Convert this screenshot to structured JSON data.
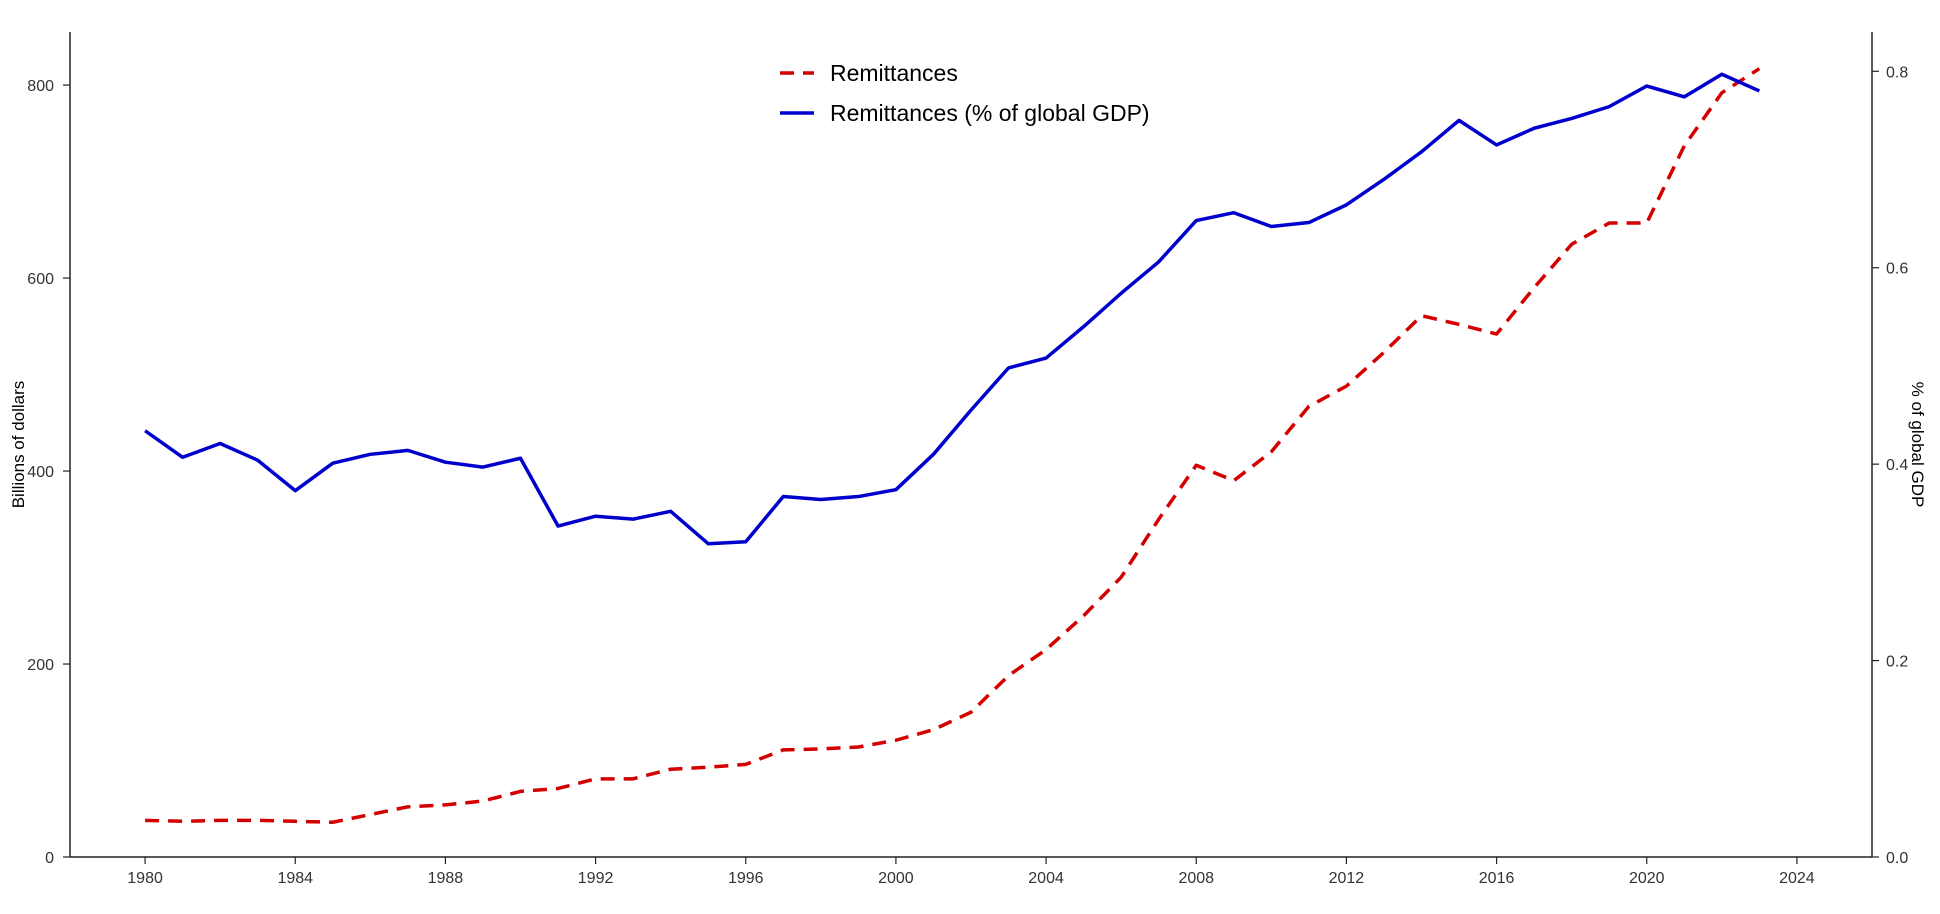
{
  "chart_data": {
    "type": "line",
    "title": "",
    "x": [
      1980,
      1981,
      1982,
      1983,
      1984,
      1985,
      1986,
      1987,
      1988,
      1989,
      1990,
      1991,
      1992,
      1993,
      1994,
      1995,
      1996,
      1997,
      1998,
      1999,
      2000,
      2001,
      2002,
      2003,
      2004,
      2005,
      2006,
      2007,
      2008,
      2009,
      2010,
      2011,
      2012,
      2013,
      2014,
      2015,
      2016,
      2017,
      2018,
      2019,
      2020,
      2021,
      2022,
      2023
    ],
    "xlim": [
      1978,
      2026
    ],
    "xticks": [
      "1980",
      "1984",
      "1988",
      "1992",
      "1996",
      "2000",
      "2004",
      "2008",
      "2012",
      "2016",
      "2020",
      "2024"
    ],
    "xlabel": "",
    "ylabel_left": "Billions of dollars",
    "ylim_left": [
      0,
      855
    ],
    "yticks_left": [
      "0",
      "200",
      "400",
      "600",
      "800"
    ],
    "ylabel_right": "% of global GDP",
    "ylim_right": [
      0,
      0.84
    ],
    "yticks_right": [
      "0.0",
      "0.2",
      "0.4",
      "0.6",
      "0.8"
    ],
    "grid": false,
    "legend_position": "top-center",
    "series": [
      {
        "name": "Remittances",
        "axis": "left",
        "style": "dashed",
        "color": "#d40000",
        "values": [
          38,
          37,
          38,
          38,
          37,
          36,
          44,
          52,
          54,
          58,
          68,
          71,
          81,
          81,
          91,
          93,
          96,
          111,
          112,
          114,
          121,
          132,
          150,
          188,
          215,
          250,
          290,
          350,
          406,
          390,
          420,
          467,
          488,
          523,
          561,
          552,
          542,
          590,
          635,
          657,
          657,
          737,
          792,
          817
        ]
      },
      {
        "name": "Remittances (% of global GDP)",
        "axis": "right",
        "style": "solid",
        "color": "#0000cc",
        "values": [
          0.434,
          0.407,
          0.421,
          0.404,
          0.373,
          0.401,
          0.41,
          0.414,
          0.402,
          0.397,
          0.406,
          0.337,
          0.347,
          0.344,
          0.352,
          0.319,
          0.321,
          0.367,
          0.364,
          0.367,
          0.374,
          0.41,
          0.455,
          0.498,
          0.508,
          0.54,
          0.574,
          0.606,
          0.648,
          0.656,
          0.642,
          0.646,
          0.664,
          0.69,
          0.718,
          0.75,
          0.725,
          0.742,
          0.752,
          0.764,
          0.785,
          0.774,
          0.797,
          0.78
        ]
      }
    ]
  }
}
